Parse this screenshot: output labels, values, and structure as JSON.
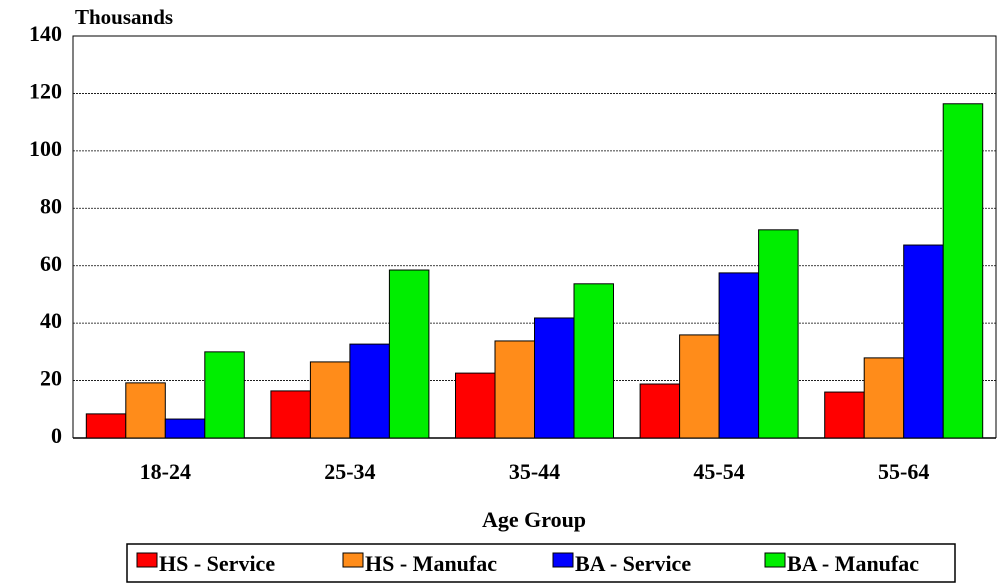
{
  "chart_data": {
    "type": "bar",
    "y_axis_label": "Thousands",
    "x_axis_label": "Age Group",
    "categories": [
      "18-24",
      "25-34",
      "35-44",
      "45-54",
      "55-64"
    ],
    "series": [
      {
        "name": "HS - Service",
        "color": "#ff0000",
        "values": [
          8.4,
          16.4,
          22.6,
          18.8,
          16
        ]
      },
      {
        "name": "HS - Manufac",
        "color": "#ff8c1a",
        "values": [
          19.2,
          26.5,
          33.8,
          35.9,
          27.9
        ]
      },
      {
        "name": "BA - Service",
        "color": "#0000ff",
        "values": [
          6.6,
          32.7,
          41.8,
          57.5,
          67.2
        ]
      },
      {
        "name": "BA - Manufac",
        "color": "#00ee00",
        "values": [
          30,
          58.5,
          53.7,
          72.5,
          116.4
        ]
      }
    ],
    "ylim": [
      0,
      140
    ],
    "yticks": [
      0,
      20,
      40,
      60,
      80,
      100,
      120,
      140
    ],
    "grid": true,
    "legend": "bottom"
  }
}
